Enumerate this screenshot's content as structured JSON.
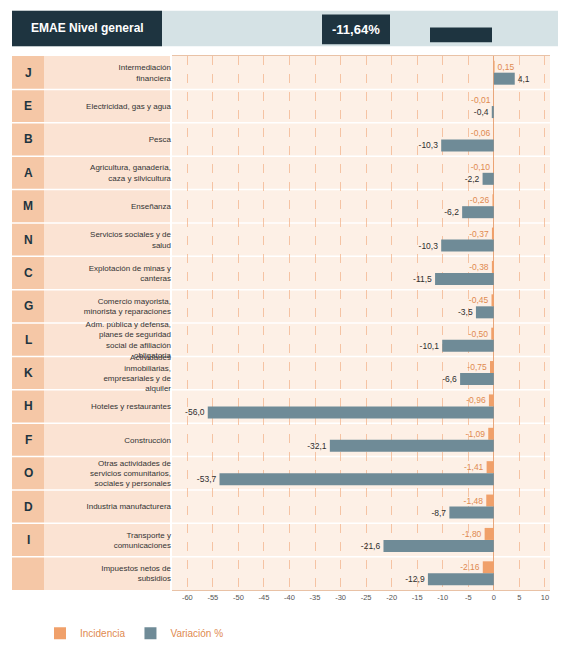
{
  "chart_data": {
    "type": "bar",
    "orientation": "horizontal",
    "title": "EMAE Nivel general",
    "headline": "-11,64%",
    "codes": [
      "J",
      "E",
      "B",
      "A",
      "M",
      "N",
      "C",
      "G",
      "L",
      "K",
      "H",
      "F",
      "O",
      "D",
      "I",
      null
    ],
    "categories": [
      "Intermediación financiera",
      "Electricidad, gas y agua",
      "Pesca",
      "Agricultura, ganadería, caza y silvicultura",
      "Enseñanza",
      "Servicios sociales y de salud",
      "Explotación de minas y canteras",
      "Comercio mayorista, minorista y reparaciones",
      "Adm. pública y defensa, planes de seguridad social de afiliación obligatoria",
      "Actividades inmobiliarias, empresariales y de alquiler",
      "Hoteles y restaurantes",
      "Construcción",
      "Otras actividades de servicios comunitarios, sociales y personales",
      "Industria manufacturera",
      "Transporte y comunicaciones",
      "Impuestos netos de subsidios"
    ],
    "series": [
      {
        "name": "Incidencia",
        "color": "#f0a06a",
        "values": [
          0.15,
          -0.01,
          -0.06,
          -0.1,
          -0.26,
          -0.37,
          -0.38,
          -0.45,
          -0.5,
          -0.75,
          -0.96,
          -1.09,
          -1.41,
          -1.48,
          -1.8,
          -2.16
        ],
        "value_labels": [
          "0,15",
          "-0,01",
          "-0,06",
          "-0,10",
          "-0,26",
          "-0,37",
          "-0,38",
          "-0,45",
          "-0,50",
          "-0,75",
          "-0,96",
          "-1,09",
          "-1,41",
          "-1,48",
          "-1,80",
          "-2,16"
        ]
      },
      {
        "name": "Variación %",
        "color": "#6f8b97",
        "values": [
          4.1,
          -0.4,
          -10.3,
          -2.2,
          -6.2,
          -10.3,
          -11.5,
          -3.5,
          -10.1,
          -6.6,
          -56.0,
          -32.1,
          -53.7,
          -8.7,
          -21.6,
          -12.9
        ],
        "value_labels": [
          "4,1",
          "-0,4",
          "-10,3",
          "-2,2",
          "-6,2",
          "-10,3",
          "-11,5",
          "-3,5",
          "-10,1",
          "-6,6",
          "-56,0",
          "-32,1",
          "-53,7",
          "-8,7",
          "-21,6",
          "-12,9"
        ]
      }
    ],
    "xlim": [
      -63,
      11
    ],
    "xticks": [
      -60,
      -55,
      -50,
      -45,
      -40,
      -35,
      -30,
      -25,
      -20,
      -15,
      -10,
      -5,
      0,
      5,
      10
    ],
    "grid": true,
    "data_labels": true,
    "legend": "bottom left"
  }
}
